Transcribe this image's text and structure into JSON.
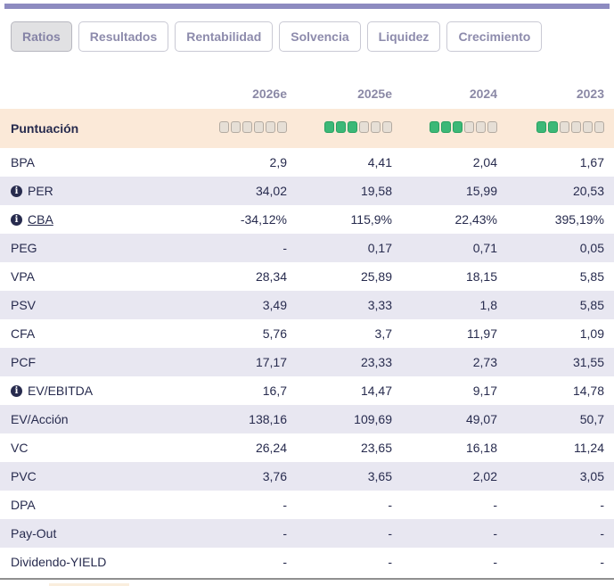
{
  "colors": {
    "accent_bar": "#8d8bc0",
    "score_row_bg": "#fbe9d8",
    "stripe_bg": "#e8e7f1",
    "filled_square_green": "#3cb877",
    "empty_square": "#e6dfd6",
    "text_navy": "#272b4e",
    "header_text": "#8b89a6"
  },
  "tabs": [
    {
      "label": "Ratios",
      "active": true
    },
    {
      "label": "Resultados",
      "active": false
    },
    {
      "label": "Rentabilidad",
      "active": false
    },
    {
      "label": "Solvencia",
      "active": false
    },
    {
      "label": "Liquidez",
      "active": false
    },
    {
      "label": "Crecimiento",
      "active": false
    }
  ],
  "table": {
    "columns": [
      "2026e",
      "2025e",
      "2024",
      "2023"
    ],
    "score_row": {
      "label": "Puntuación",
      "max_squares": 6,
      "scores": [
        0,
        3,
        3,
        2
      ]
    },
    "rows": [
      {
        "label": "BPA",
        "info": false,
        "underline": false,
        "values": [
          "2,9",
          "4,41",
          "2,04",
          "1,67"
        ]
      },
      {
        "label": "PER",
        "info": true,
        "underline": false,
        "values": [
          "34,02",
          "19,58",
          "15,99",
          "20,53"
        ]
      },
      {
        "label": "CBA",
        "info": true,
        "underline": true,
        "values": [
          "-34,12%",
          "115,9%",
          "22,43%",
          "395,19%"
        ]
      },
      {
        "label": "PEG",
        "info": false,
        "underline": false,
        "values": [
          "-",
          "0,17",
          "0,71",
          "0,05"
        ]
      },
      {
        "label": "VPA",
        "info": false,
        "underline": false,
        "values": [
          "28,34",
          "25,89",
          "18,15",
          "5,85"
        ]
      },
      {
        "label": "PSV",
        "info": false,
        "underline": false,
        "values": [
          "3,49",
          "3,33",
          "1,8",
          "5,85"
        ]
      },
      {
        "label": "CFA",
        "info": false,
        "underline": false,
        "values": [
          "5,76",
          "3,7",
          "11,97",
          "1,09"
        ]
      },
      {
        "label": "PCF",
        "info": false,
        "underline": false,
        "values": [
          "17,17",
          "23,33",
          "2,73",
          "31,55"
        ]
      },
      {
        "label": "EV/EBITDA",
        "info": true,
        "underline": false,
        "values": [
          "16,7",
          "14,47",
          "9,17",
          "14,78"
        ]
      },
      {
        "label": "EV/Acción",
        "info": false,
        "underline": false,
        "values": [
          "138,16",
          "109,69",
          "49,07",
          "50,7"
        ]
      },
      {
        "label": "VC",
        "info": false,
        "underline": false,
        "values": [
          "26,24",
          "23,65",
          "16,18",
          "11,24"
        ]
      },
      {
        "label": "PVC",
        "info": false,
        "underline": false,
        "values": [
          "3,76",
          "3,65",
          "2,02",
          "3,05"
        ]
      },
      {
        "label": "DPA",
        "info": false,
        "underline": false,
        "values": [
          "-",
          "-",
          "-",
          "-"
        ]
      },
      {
        "label": "Pay-Out",
        "info": false,
        "underline": false,
        "values": [
          "-",
          "-",
          "-",
          "-"
        ]
      },
      {
        "label": "Dividendo-YIELD",
        "info": false,
        "underline": false,
        "values": [
          "-",
          "-",
          "-",
          "-"
        ]
      }
    ]
  }
}
